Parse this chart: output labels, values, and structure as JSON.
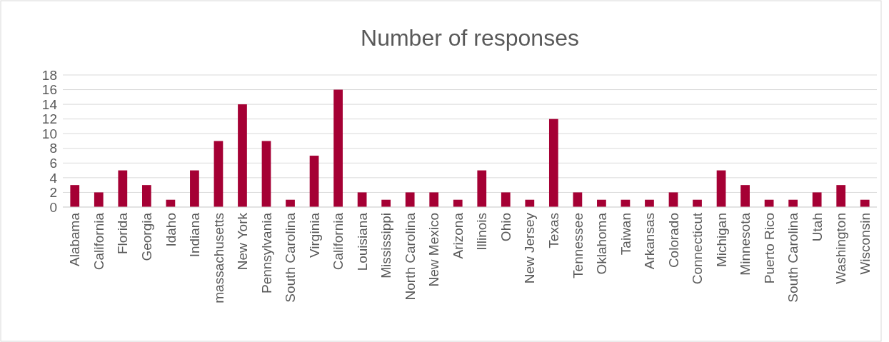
{
  "chart_data": {
    "type": "bar",
    "title": "Number of responses",
    "categories": [
      "Alabama",
      "California",
      "Florida",
      "Georgia",
      "Idaho",
      "Indiana",
      "massachusetts",
      "New York",
      "Pennsylvania",
      "South Carolina",
      "Virginia",
      "California",
      "Louisiana",
      "Mississippi",
      "North Carolina",
      "New Mexico",
      "Arizona",
      "Illinois",
      "Ohio",
      "New Jersey",
      "Texas",
      "Tennessee",
      "Oklahoma",
      "Taiwan",
      "Arkansas",
      "Colorado",
      "Connecticut",
      "Michigan",
      "Minnesota",
      "Puerto Rico",
      "South Carolina",
      "Utah",
      "Washington",
      "Wisconsin"
    ],
    "values": [
      3,
      2,
      5,
      3,
      1,
      5,
      9,
      14,
      9,
      1,
      7,
      16,
      2,
      1,
      2,
      2,
      1,
      5,
      2,
      1,
      12,
      2,
      1,
      1,
      1,
      2,
      1,
      5,
      3,
      1,
      1,
      2,
      3,
      1
    ],
    "color": "#a50034",
    "ylim": [
      0,
      18
    ],
    "yticks": [
      0,
      2,
      4,
      6,
      8,
      10,
      12,
      14,
      16,
      18
    ],
    "grid": "y"
  }
}
